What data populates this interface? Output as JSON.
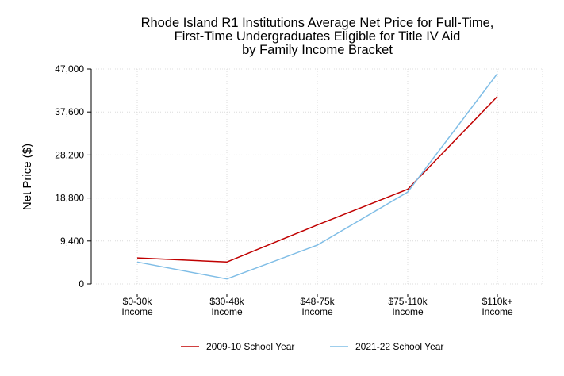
{
  "chart_data": {
    "type": "line",
    "title_lines": [
      "Rhode Island R1 Institutions Average Net Price for Full-Time,",
      "First-Time Undergraduates Eligible for Title IV Aid",
      "by Family Income Bracket"
    ],
    "ylabel": "Net Price ($)",
    "xlabel": "",
    "categories": [
      [
        "$0-30k",
        "Income"
      ],
      [
        "$30-48k",
        "Income"
      ],
      [
        "$48-75k",
        "Income"
      ],
      [
        "$75-110k",
        "Income"
      ],
      [
        "$110k+",
        "Income"
      ]
    ],
    "y_ticks": [
      "0",
      "9,400",
      "18,800",
      "28,200",
      "37,600",
      "47,000"
    ],
    "y_tick_values": [
      0,
      9400,
      18800,
      28200,
      37600,
      47000
    ],
    "ylim": [
      0,
      47000
    ],
    "grid": true,
    "legend_position": "bottom",
    "series": [
      {
        "name": "2009-10 School Year",
        "color": "#c00000",
        "values": [
          5700,
          4800,
          12900,
          20700,
          41000
        ]
      },
      {
        "name": "2021-22 School Year",
        "color": "#7fbde6",
        "values": [
          4800,
          1100,
          8500,
          20100,
          46000
        ]
      }
    ]
  }
}
